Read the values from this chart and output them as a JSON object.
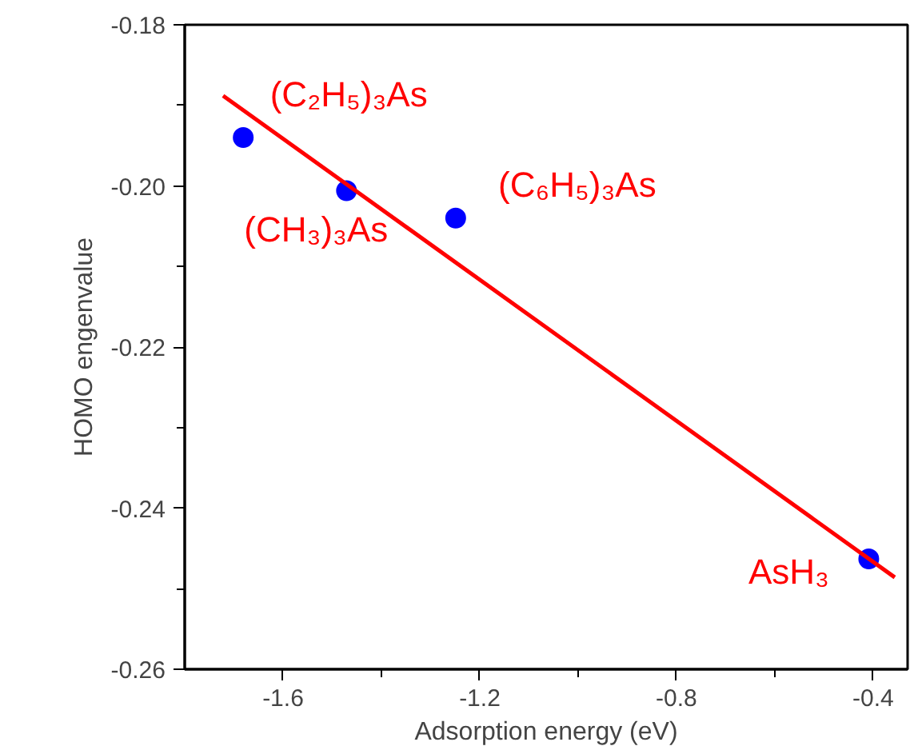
{
  "chart_data": {
    "type": "scatter",
    "xlabel": "Adsorption energy (eV)",
    "ylabel": "HOMO engenvalue",
    "xlim": [
      -1.8,
      -0.33
    ],
    "ylim": [
      -0.26,
      -0.18
    ],
    "xticks": [
      -1.6,
      {
        "value": -1.4,
        "label": null
      },
      -1.2,
      {
        "value": -1.0,
        "label": null
      },
      -0.8,
      {
        "value": -0.6,
        "label": null
      },
      -0.4
    ],
    "yticks": [
      -0.26,
      {
        "value": -0.25,
        "label": null
      },
      -0.24,
      {
        "value": -0.23,
        "label": null
      },
      -0.22,
      {
        "value": -0.21,
        "label": null
      },
      {
        "value": -0.2,
        "label": "-0.20"
      },
      {
        "value": -0.19,
        "label": null
      },
      -0.18
    ],
    "grid": false,
    "series": [
      {
        "marker": "circle",
        "color": "#0000ff",
        "x": [
          -1.681,
          -1.471,
          -1.249,
          -0.409
        ],
        "values": [
          -0.194,
          -0.2006,
          -0.204,
          -0.2463
        ]
      },
      {
        "type": "line",
        "color": "#ff0000",
        "x": [
          -1.722,
          -0.356
        ],
        "values": [
          -0.1888,
          -0.2486
        ]
      }
    ],
    "annotations": [
      {
        "text": "(C₂H₅)₃As",
        "x": -1.681,
        "y": -0.194
      },
      {
        "text": "(CH₃)₃As",
        "x": -1.471,
        "y": -0.2006
      },
      {
        "text": "(C₆H₅)₃As",
        "x": -1.249,
        "y": -0.204
      },
      {
        "text": "AsH₃",
        "x": -0.409,
        "y": -0.2463
      }
    ]
  }
}
